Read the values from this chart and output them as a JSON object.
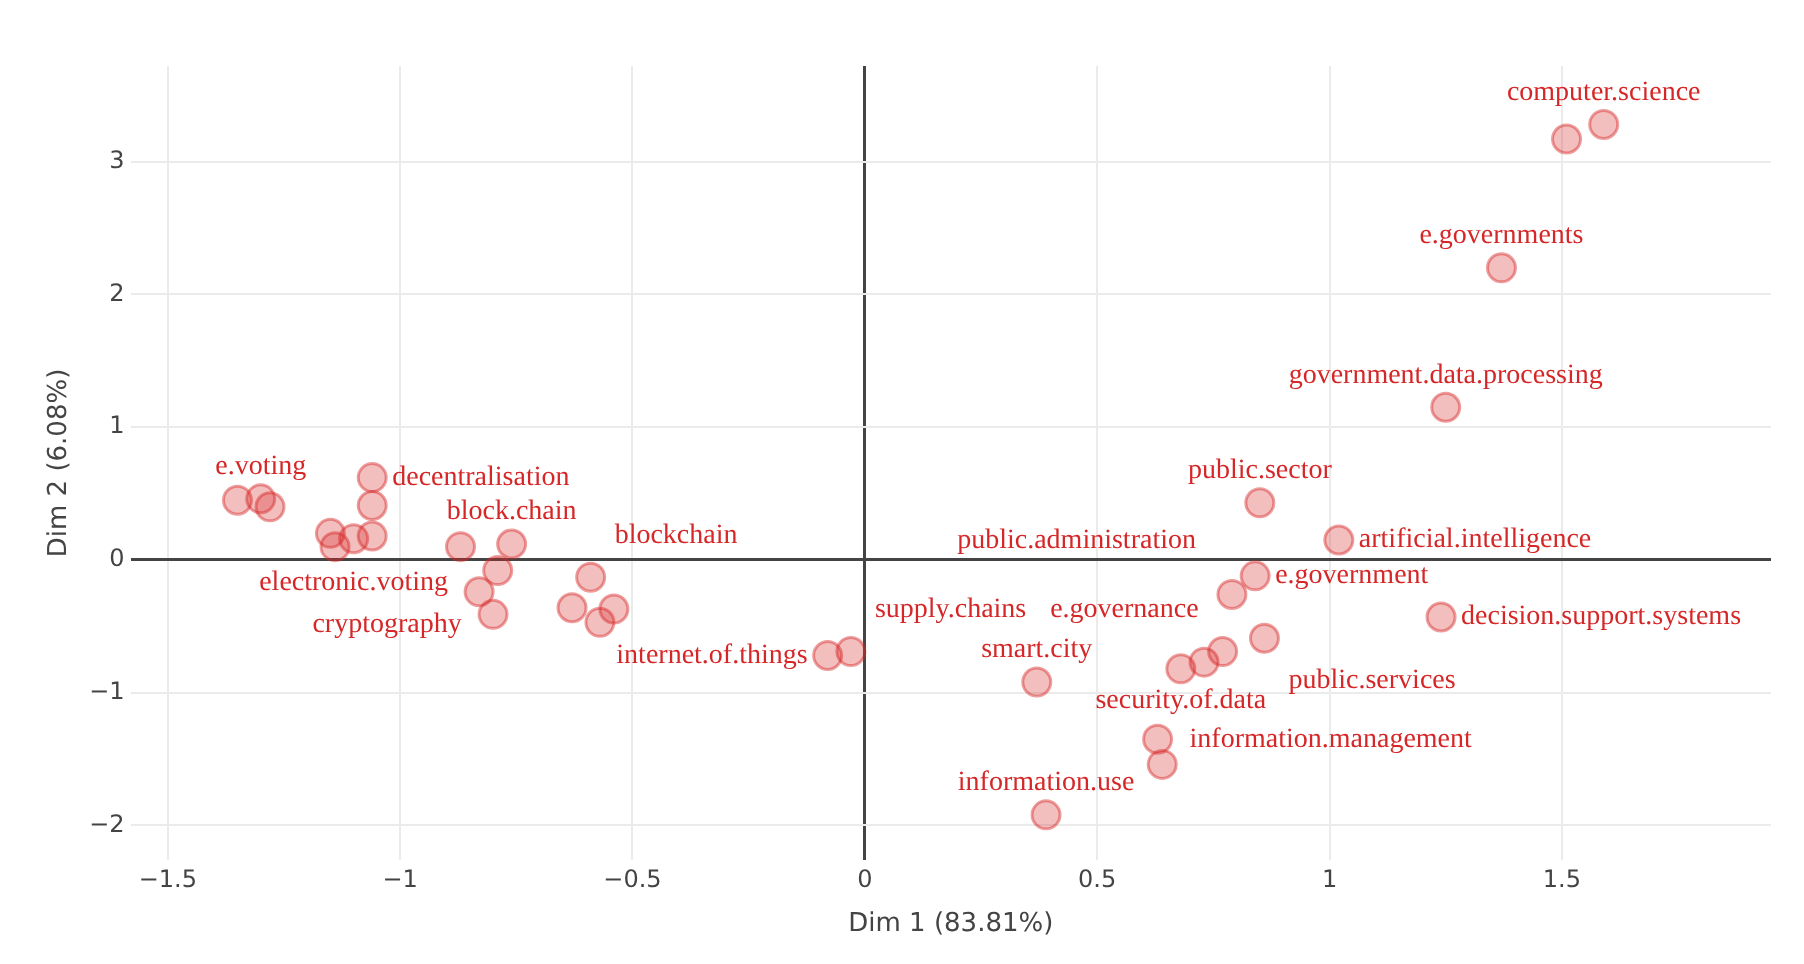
{
  "chart_data": {
    "type": "scatter",
    "xlabel": "Dim 1 (83.81%)",
    "ylabel": "Dim 2 (6.08%)",
    "x": [
      -1.35,
      -1.3,
      -1.28,
      -1.06,
      -1.06,
      -1.15,
      -1.14,
      -1.1,
      -1.06,
      -0.87,
      -0.76,
      -0.59,
      -0.79,
      -0.83,
      -0.8,
      -0.63,
      -0.57,
      -0.54,
      -0.08,
      -0.03,
      0.37,
      0.68,
      0.73,
      0.77,
      0.86,
      0.79,
      0.84,
      1.24,
      1.02,
      0.85,
      0.63,
      0.64,
      0.39,
      1.25,
      1.37,
      1.51,
      1.59
    ],
    "values": [
      0.45,
      0.46,
      0.4,
      0.62,
      0.41,
      0.2,
      0.1,
      0.16,
      0.18,
      0.1,
      0.12,
      -0.13,
      -0.08,
      -0.24,
      -0.41,
      -0.36,
      -0.47,
      -0.37,
      -0.72,
      -0.69,
      -0.92,
      -0.82,
      -0.77,
      -0.69,
      -0.59,
      -0.26,
      -0.12,
      -0.43,
      0.15,
      0.43,
      -1.35,
      -1.54,
      -1.92,
      1.15,
      2.2,
      3.17,
      3.28
    ],
    "value_labels": [
      null,
      "e.voting",
      null,
      "decentralisation",
      null,
      null,
      null,
      "electronic.voting",
      null,
      null,
      "block.chain",
      "blockchain",
      "cryptography",
      null,
      null,
      null,
      null,
      null,
      "internet.of.things",
      "supply.chains",
      "smart.city",
      "security.of.data",
      null,
      "e.governance",
      "public.services",
      "public.administration",
      "e.government",
      "decision.support.systems",
      "artificial.intelligence",
      "public.sector",
      "information.management",
      null,
      "information.use",
      "government.data.processing",
      "e.governments",
      null,
      "computer.science"
    ],
    "color": "#d62728",
    "marker": "circle",
    "xlim": [
      -1.58,
      1.95
    ],
    "ylim": [
      -2.26,
      3.72
    ],
    "xticks": [
      -1.5,
      -1,
      -0.5,
      0,
      0.5,
      1,
      1.5
    ],
    "yticks": [
      -2,
      -1,
      0,
      1,
      2,
      3
    ],
    "grid": true,
    "legend": false
  }
}
